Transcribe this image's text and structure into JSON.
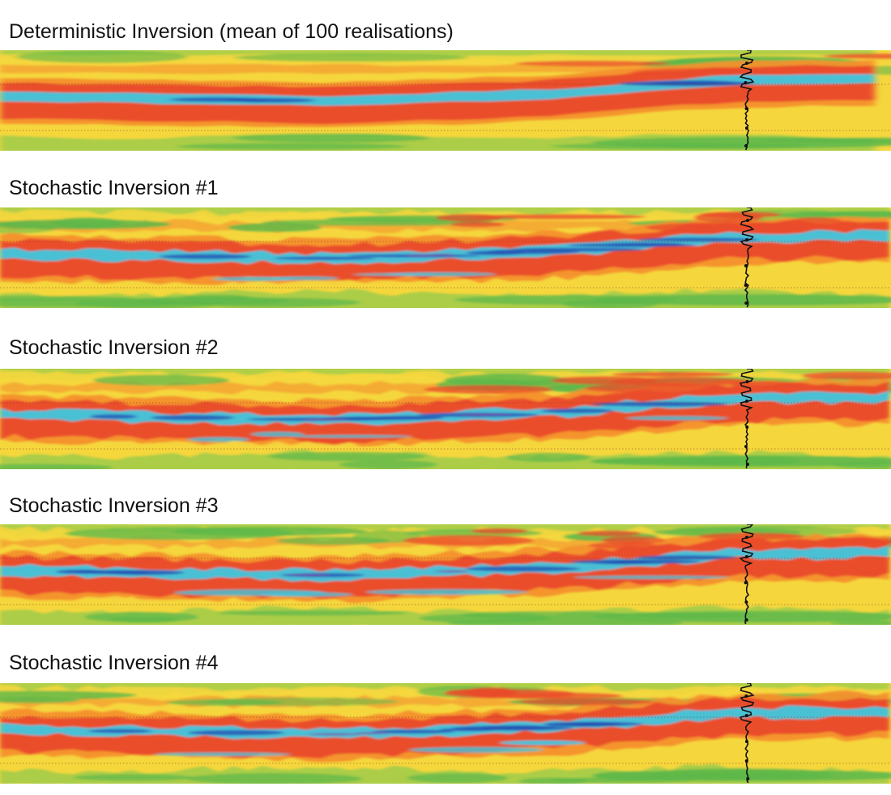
{
  "colors": {
    "red": "#ea4b2b",
    "orange": "#f4902d",
    "yellow": "#f5d73d",
    "green": "#5cb84a",
    "light_green": "#a3cc48",
    "cyan": "#3fc6dd",
    "blue": "#2452b4",
    "purple": "#7e4ba8",
    "well_log": "#111111",
    "horizon_marker": "#8a3a22"
  },
  "well_log_icon": "well-log-trace",
  "panels": [
    {
      "title": "Deterministic Inversion (mean of 100 realisations)",
      "variant": "smooth"
    },
    {
      "title": "Stochastic Inversion #1",
      "variant": "stochastic"
    },
    {
      "title": "Stochastic Inversion #2",
      "variant": "stochastic"
    },
    {
      "title": "Stochastic Inversion #3",
      "variant": "stochastic"
    },
    {
      "title": "Stochastic Inversion #4",
      "variant": "stochastic"
    }
  ]
}
